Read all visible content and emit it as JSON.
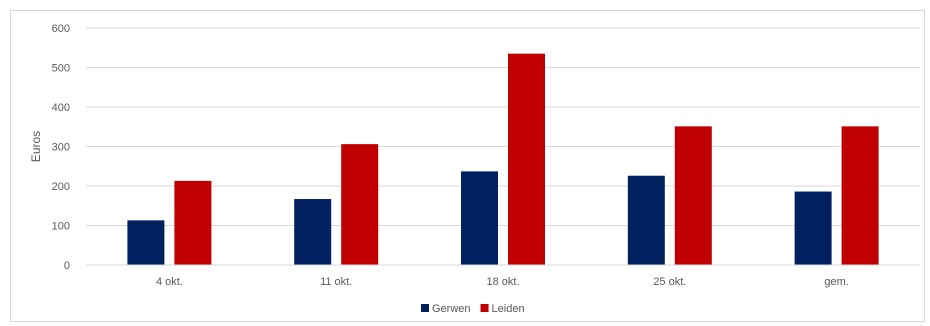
{
  "chart_data": {
    "type": "bar",
    "title": "",
    "xlabel": "",
    "ylabel": "Euros",
    "ylim": [
      0,
      600
    ],
    "yticks": [
      0,
      100,
      200,
      300,
      400,
      500,
      600
    ],
    "grid": true,
    "legend_position": "bottom",
    "categories": [
      "4 okt.",
      "11 okt.",
      "18 okt.",
      "25 okt.",
      "gem."
    ],
    "series": [
      {
        "name": "Gerwen",
        "color": "#002060",
        "values": [
          113,
          167,
          237,
          226,
          186
        ]
      },
      {
        "name": "Leiden",
        "color": "#c00000",
        "values": [
          213,
          306,
          535,
          351,
          351
        ]
      }
    ]
  }
}
